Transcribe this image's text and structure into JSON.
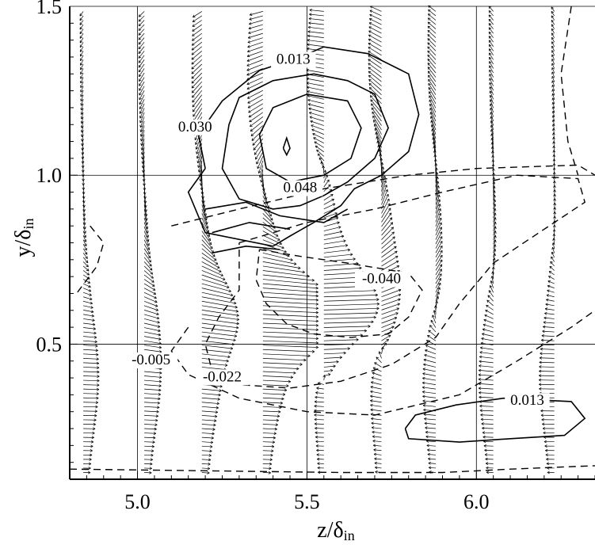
{
  "chart_data": {
    "type": "vector-contour",
    "xlabel": {
      "main": "z/δ",
      "sub": "in"
    },
    "ylabel": {
      "main": "y/δ",
      "sub": "in"
    },
    "xlim": [
      4.8,
      6.35
    ],
    "ylim": [
      0.1,
      1.5
    ],
    "xticks": [
      5.0,
      5.5,
      6.0
    ],
    "xtick_labels": [
      "5.0",
      "5.5",
      "6.0"
    ],
    "yticks": [
      0.5,
      1.0,
      1.5
    ],
    "ytick_labels": [
      "0.5",
      "1.0",
      "1.5"
    ],
    "grid": true,
    "contour_labels": [
      {
        "text": "0.013",
        "x": 5.46,
        "y": 1.33,
        "sign": "positive"
      },
      {
        "text": "0.030",
        "x": 5.17,
        "y": 1.13,
        "sign": "positive"
      },
      {
        "text": "0.048",
        "x": 5.48,
        "y": 0.95,
        "sign": "positive"
      },
      {
        "text": "-0.040",
        "x": 5.72,
        "y": 0.68,
        "sign": "negative"
      },
      {
        "text": "-0.005",
        "x": 5.04,
        "y": 0.44,
        "sign": "negative"
      },
      {
        "text": "-0.022",
        "x": 5.25,
        "y": 0.39,
        "sign": "negative"
      },
      {
        "text": "0.013",
        "x": 6.15,
        "y": 0.32,
        "sign": "positive"
      }
    ],
    "solid_contours": [
      {
        "name": "0.013 outer",
        "points": [
          [
            5.2,
            1.02
          ],
          [
            5.18,
            1.12
          ],
          [
            5.25,
            1.22
          ],
          [
            5.36,
            1.31
          ],
          [
            5.48,
            1.35
          ],
          [
            5.55,
            1.38
          ],
          [
            5.68,
            1.36
          ],
          [
            5.8,
            1.3
          ],
          [
            5.83,
            1.18
          ],
          [
            5.8,
            1.07
          ],
          [
            5.72,
            1.0
          ],
          [
            5.64,
            0.96
          ],
          [
            5.6,
            0.91
          ],
          [
            5.52,
            0.86
          ],
          [
            5.45,
            0.82
          ],
          [
            5.4,
            0.79
          ],
          [
            5.2,
            0.83
          ],
          [
            5.15,
            0.95
          ],
          [
            5.2,
            1.02
          ]
        ]
      },
      {
        "name": "0.030",
        "points": [
          [
            5.27,
            1.15
          ],
          [
            5.3,
            1.23
          ],
          [
            5.4,
            1.28
          ],
          [
            5.52,
            1.3
          ],
          [
            5.62,
            1.28
          ],
          [
            5.7,
            1.24
          ],
          [
            5.74,
            1.14
          ],
          [
            5.7,
            1.05
          ],
          [
            5.62,
            0.98
          ],
          [
            5.55,
            0.94
          ],
          [
            5.48,
            0.91
          ],
          [
            5.4,
            0.9
          ],
          [
            5.3,
            0.93
          ],
          [
            5.25,
            1.02
          ],
          [
            5.27,
            1.15
          ]
        ]
      },
      {
        "name": "0.048",
        "points": [
          [
            5.36,
            1.12
          ],
          [
            5.4,
            1.2
          ],
          [
            5.5,
            1.24
          ],
          [
            5.62,
            1.22
          ],
          [
            5.66,
            1.14
          ],
          [
            5.63,
            1.05
          ],
          [
            5.55,
            1.0
          ],
          [
            5.45,
            0.98
          ],
          [
            5.38,
            1.02
          ],
          [
            5.36,
            1.12
          ]
        ]
      },
      {
        "name": "0.065 core",
        "points": [
          [
            5.43,
            1.08
          ],
          [
            5.44,
            1.11
          ],
          [
            5.45,
            1.08
          ],
          [
            5.44,
            1.06
          ],
          [
            5.43,
            1.08
          ]
        ]
      },
      {
        "name": "inner ridge",
        "points": [
          [
            5.2,
            0.9
          ],
          [
            5.32,
            0.92
          ],
          [
            5.42,
            0.88
          ],
          [
            5.55,
            0.86
          ],
          [
            5.62,
            0.9
          ]
        ]
      },
      {
        "name": "inner ridge 2",
        "points": [
          [
            5.22,
            0.83
          ],
          [
            5.33,
            0.86
          ],
          [
            5.45,
            0.84
          ]
        ]
      },
      {
        "name": "inner ridge 3",
        "points": [
          [
            5.22,
            0.77
          ],
          [
            5.32,
            0.79
          ],
          [
            5.42,
            0.78
          ]
        ]
      },
      {
        "name": "0.013 lower right",
        "points": [
          [
            5.79,
            0.25
          ],
          [
            5.82,
            0.29
          ],
          [
            5.94,
            0.32
          ],
          [
            6.08,
            0.34
          ],
          [
            6.28,
            0.33
          ],
          [
            6.32,
            0.28
          ],
          [
            6.26,
            0.23
          ],
          [
            6.1,
            0.22
          ],
          [
            5.95,
            0.21
          ],
          [
            5.8,
            0.22
          ],
          [
            5.79,
            0.25
          ]
        ]
      }
    ],
    "dashed_contours": [
      {
        "name": "-0.040",
        "points": [
          [
            5.36,
            0.78
          ],
          [
            5.48,
            0.76
          ],
          [
            5.62,
            0.74
          ],
          [
            5.8,
            0.71
          ],
          [
            5.84,
            0.66
          ],
          [
            5.8,
            0.58
          ],
          [
            5.74,
            0.53
          ],
          [
            5.63,
            0.52
          ],
          [
            5.52,
            0.53
          ],
          [
            5.44,
            0.56
          ],
          [
            5.38,
            0.62
          ],
          [
            5.35,
            0.69
          ],
          [
            5.36,
            0.78
          ]
        ]
      },
      {
        "name": "-0.022",
        "points": [
          [
            5.3,
            0.8
          ],
          [
            5.5,
            0.86
          ],
          [
            5.7,
            0.9
          ],
          [
            5.9,
            0.95
          ],
          [
            6.12,
            1.0
          ],
          [
            6.3,
            0.99
          ],
          [
            6.32,
            0.92
          ],
          [
            6.2,
            0.84
          ],
          [
            6.05,
            0.74
          ],
          [
            5.95,
            0.62
          ],
          [
            5.88,
            0.52
          ],
          [
            5.75,
            0.44
          ],
          [
            5.6,
            0.39
          ],
          [
            5.45,
            0.37
          ],
          [
            5.3,
            0.38
          ],
          [
            5.22,
            0.42
          ],
          [
            5.2,
            0.5
          ],
          [
            5.24,
            0.58
          ],
          [
            5.3,
            0.66
          ],
          [
            5.3,
            0.8
          ]
        ]
      },
      {
        "name": "-0.005",
        "points": [
          [
            5.1,
            0.85
          ],
          [
            5.3,
            0.9
          ],
          [
            5.55,
            0.96
          ],
          [
            5.8,
            1.0
          ],
          [
            6.0,
            1.02
          ],
          [
            6.3,
            1.03
          ],
          [
            6.35,
            1.0
          ]
        ]
      },
      {
        "name": "-0.005 lower",
        "points": [
          [
            5.15,
            0.55
          ],
          [
            5.1,
            0.48
          ],
          [
            5.15,
            0.41
          ],
          [
            5.3,
            0.34
          ],
          [
            5.5,
            0.3
          ],
          [
            5.7,
            0.29
          ],
          [
            5.95,
            0.35
          ],
          [
            6.12,
            0.45
          ],
          [
            6.28,
            0.55
          ],
          [
            6.35,
            0.6
          ]
        ]
      },
      {
        "name": "left",
        "points": [
          [
            4.86,
            0.85
          ],
          [
            4.9,
            0.8
          ],
          [
            4.88,
            0.73
          ],
          [
            4.85,
            0.69
          ],
          [
            4.82,
            0.65
          ]
        ]
      },
      {
        "name": "bottom",
        "points": [
          [
            4.8,
            0.13
          ],
          [
            5.2,
            0.125
          ],
          [
            5.6,
            0.12
          ],
          [
            5.9,
            0.12
          ],
          [
            6.1,
            0.13
          ],
          [
            6.35,
            0.14
          ]
        ]
      },
      {
        "name": "right upper",
        "points": [
          [
            6.28,
            1.5
          ],
          [
            6.25,
            1.3
          ],
          [
            6.27,
            1.1
          ],
          [
            6.3,
            1.0
          ]
        ]
      }
    ]
  }
}
